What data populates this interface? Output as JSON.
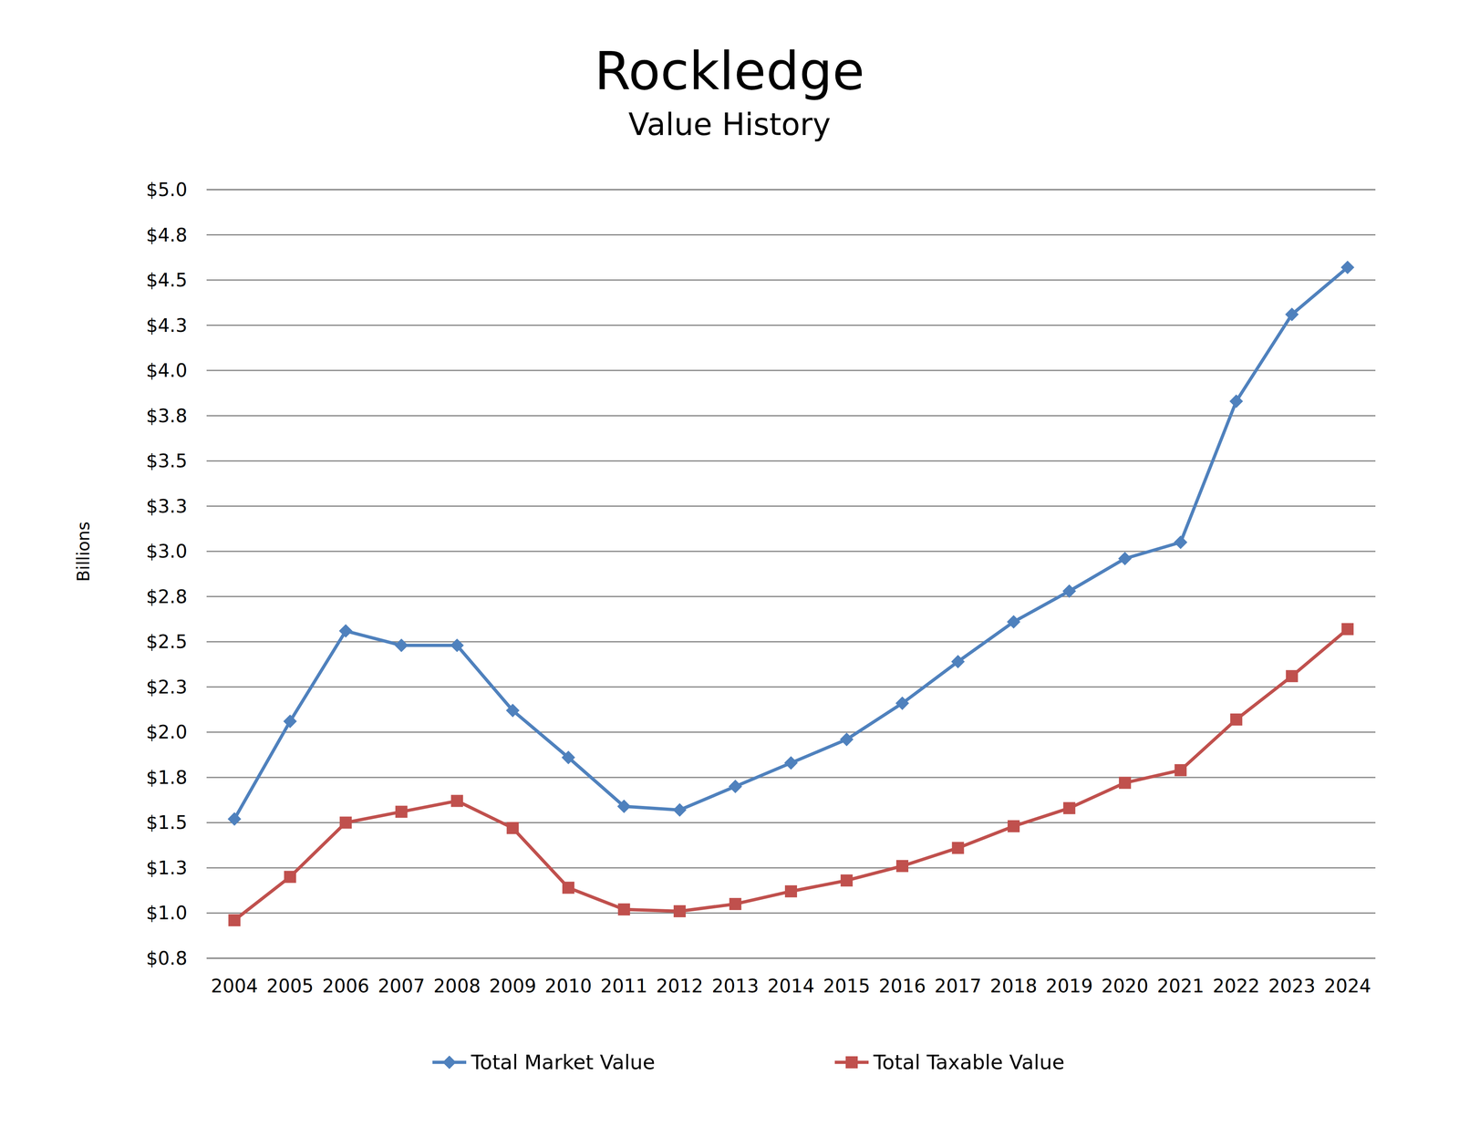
{
  "chart_data": {
    "type": "line",
    "title": "Rockledge",
    "subtitle": "Value History",
    "y_label": "Billions",
    "categories": [
      "2004",
      "2005",
      "2006",
      "2007",
      "2008",
      "2009",
      "2010",
      "2011",
      "2012",
      "2013",
      "2014",
      "2015",
      "2016",
      "2017",
      "2018",
      "2019",
      "2020",
      "2021",
      "2022",
      "2023",
      "2024"
    ],
    "series": [
      {
        "name": "Total Market Value",
        "color": "#4f81bd",
        "marker": "diamond",
        "values": [
          1.52,
          2.06,
          2.56,
          2.48,
          2.48,
          2.12,
          1.86,
          1.59,
          1.57,
          1.7,
          1.83,
          1.96,
          2.16,
          2.39,
          2.61,
          2.78,
          2.96,
          3.05,
          3.83,
          4.31,
          4.57
        ]
      },
      {
        "name": "Total Taxable Value",
        "color": "#c0504d",
        "marker": "square",
        "values": [
          0.96,
          1.2,
          1.5,
          1.56,
          1.62,
          1.47,
          1.14,
          1.02,
          1.01,
          1.05,
          1.12,
          1.18,
          1.26,
          1.36,
          1.48,
          1.58,
          1.72,
          1.79,
          2.07,
          2.31,
          2.57
        ]
      }
    ],
    "ylim": [
      0.75,
      5.0
    ],
    "yticks": [
      {
        "value": 0.75,
        "label": "$0.8"
      },
      {
        "value": 1.0,
        "label": "$1.0"
      },
      {
        "value": 1.25,
        "label": "$1.3"
      },
      {
        "value": 1.5,
        "label": "$1.5"
      },
      {
        "value": 1.75,
        "label": "$1.8"
      },
      {
        "value": 2.0,
        "label": "$2.0"
      },
      {
        "value": 2.25,
        "label": "$2.3"
      },
      {
        "value": 2.5,
        "label": "$2.5"
      },
      {
        "value": 2.75,
        "label": "$2.8"
      },
      {
        "value": 3.0,
        "label": "$3.0"
      },
      {
        "value": 3.25,
        "label": "$3.3"
      },
      {
        "value": 3.5,
        "label": "$3.5"
      },
      {
        "value": 3.75,
        "label": "$3.8"
      },
      {
        "value": 4.0,
        "label": "$4.0"
      },
      {
        "value": 4.25,
        "label": "$4.3"
      },
      {
        "value": 4.5,
        "label": "$4.5"
      },
      {
        "value": 4.75,
        "label": "$4.8"
      },
      {
        "value": 5.0,
        "label": "$5.0"
      }
    ],
    "grid": true,
    "legend": "bottom"
  }
}
